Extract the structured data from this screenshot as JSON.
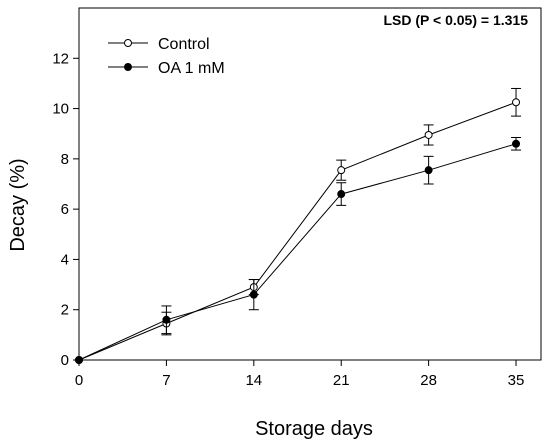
{
  "chart_data": {
    "type": "line",
    "xlabel": "Storage days",
    "ylabel": "Decay (%)",
    "x": [
      0,
      7,
      14,
      21,
      28,
      35
    ],
    "xticks": [
      "0",
      "7",
      "14",
      "21",
      "28",
      "35"
    ],
    "xlim": [
      0,
      37
    ],
    "yticks": [
      "0",
      "2",
      "4",
      "6",
      "8",
      "10",
      "12"
    ],
    "ylim": [
      0,
      14
    ],
    "grid": false,
    "legend_position": "top-left",
    "annotation": "LSD (P < 0.05) = 1.315",
    "series": [
      {
        "name": "Control",
        "marker": "open-circle",
        "values": [
          0,
          1.45,
          2.9,
          7.55,
          8.95,
          10.25
        ],
        "errors": [
          0,
          0.45,
          0.3,
          0.4,
          0.4,
          0.55
        ]
      },
      {
        "name": "OA 1 mM",
        "marker": "filled-circle",
        "values": [
          0,
          1.6,
          2.6,
          6.6,
          7.55,
          8.6
        ],
        "errors": [
          0,
          0.55,
          0.6,
          0.45,
          0.55,
          0.25
        ]
      }
    ]
  }
}
